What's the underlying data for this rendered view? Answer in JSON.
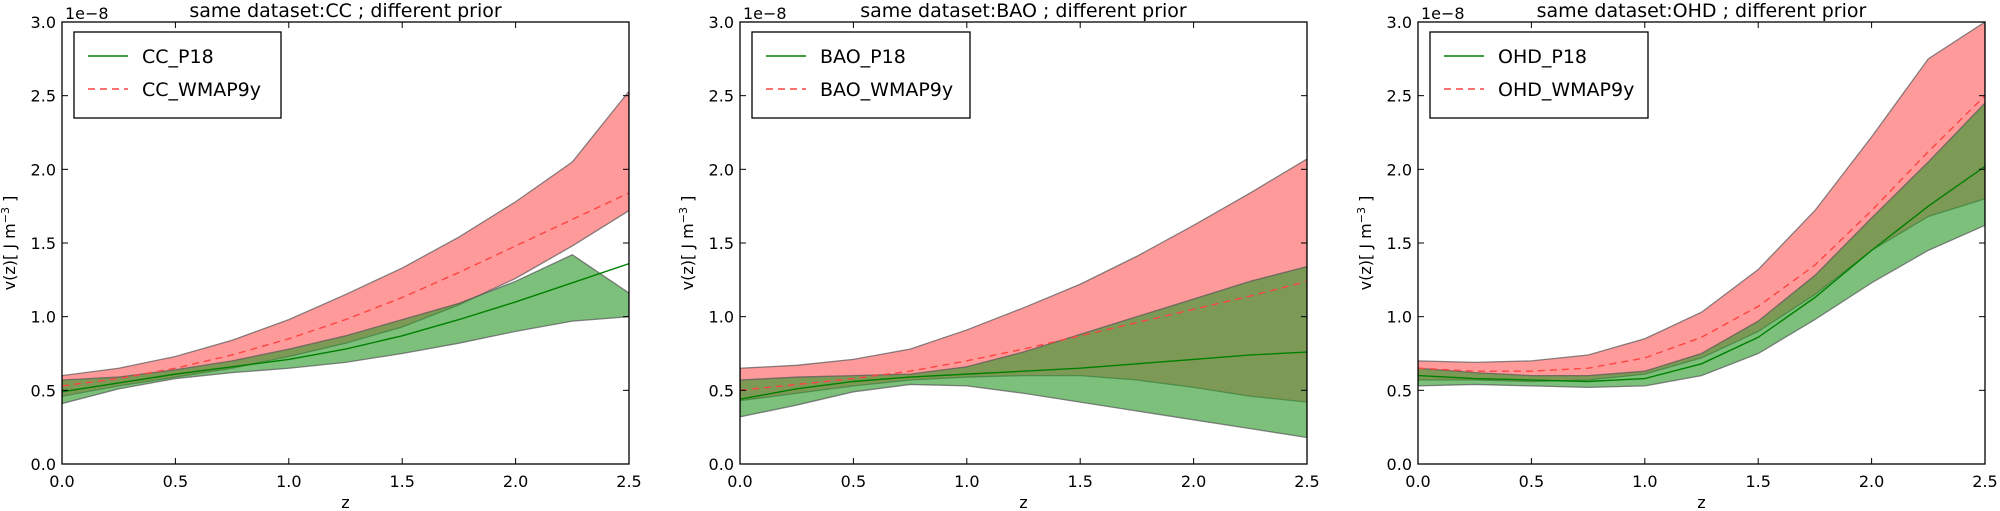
{
  "chart_data": [
    {
      "type": "line",
      "title": "same dataset:CC ; different prior",
      "xlabel": "z",
      "ylabel": "v(z)[ J m",
      "ylabel_sup": "−3",
      "ylabel_end": " ]",
      "y_offset_label": "1e−8",
      "xlim": [
        0.0,
        2.5
      ],
      "ylim": [
        0.0,
        3.0
      ],
      "xticks": [
        0.0,
        0.5,
        1.0,
        1.5,
        2.0,
        2.5
      ],
      "yticks": [
        0.0,
        0.5,
        1.0,
        1.5,
        2.0,
        2.5,
        3.0
      ],
      "legend_location": "upper-left",
      "x": [
        0.0,
        0.25,
        0.5,
        0.75,
        1.0,
        1.25,
        1.5,
        1.75,
        2.0,
        2.25,
        2.5
      ],
      "series": [
        {
          "name": "CC_P18",
          "color": "#008000",
          "fill_color": "#2b9a2b",
          "style": "solid",
          "mean": [
            0.49,
            0.55,
            0.61,
            0.66,
            0.71,
            0.78,
            0.87,
            0.98,
            1.1,
            1.23,
            1.36
          ],
          "lower": [
            0.41,
            0.51,
            0.58,
            0.62,
            0.65,
            0.69,
            0.75,
            0.82,
            0.9,
            0.97,
            1.0
          ],
          "upper": [
            0.57,
            0.59,
            0.64,
            0.7,
            0.78,
            0.87,
            0.98,
            1.09,
            1.24,
            1.42,
            1.16
          ]
        },
        {
          "name": "CC_WMAP9y",
          "color": "#ff4444",
          "fill_color": "#ff5c5c",
          "style": "dashed",
          "mean": [
            0.53,
            0.58,
            0.65,
            0.74,
            0.85,
            0.98,
            1.13,
            1.3,
            1.48,
            1.66,
            1.84
          ],
          "lower": [
            0.46,
            0.53,
            0.59,
            0.65,
            0.73,
            0.82,
            0.93,
            1.08,
            1.26,
            1.48,
            1.72
          ],
          "upper": [
            0.6,
            0.65,
            0.73,
            0.84,
            0.98,
            1.15,
            1.33,
            1.54,
            1.78,
            2.05,
            2.53
          ]
        }
      ]
    },
    {
      "type": "line",
      "title": "same dataset:BAO ; different prior",
      "xlabel": "z",
      "ylabel": "v(z)[ J m",
      "ylabel_sup": "−3",
      "ylabel_end": " ]",
      "y_offset_label": "1e−8",
      "xlim": [
        0.0,
        2.5
      ],
      "ylim": [
        0.0,
        3.0
      ],
      "xticks": [
        0.0,
        0.5,
        1.0,
        1.5,
        2.0,
        2.5
      ],
      "yticks": [
        0.0,
        0.5,
        1.0,
        1.5,
        2.0,
        2.5,
        3.0
      ],
      "legend_location": "upper-left",
      "x": [
        0.0,
        0.25,
        0.5,
        0.75,
        1.0,
        1.25,
        1.5,
        1.75,
        2.0,
        2.25,
        2.5
      ],
      "series": [
        {
          "name": "BAO_P18",
          "color": "#008000",
          "fill_color": "#2b9a2b",
          "style": "solid",
          "mean": [
            0.44,
            0.51,
            0.56,
            0.59,
            0.61,
            0.63,
            0.65,
            0.68,
            0.71,
            0.74,
            0.76
          ],
          "lower": [
            0.32,
            0.4,
            0.49,
            0.54,
            0.53,
            0.48,
            0.42,
            0.36,
            0.3,
            0.24,
            0.18
          ],
          "upper": [
            0.57,
            0.59,
            0.6,
            0.61,
            0.66,
            0.76,
            0.88,
            1.0,
            1.12,
            1.24,
            1.34
          ]
        },
        {
          "name": "BAO_WMAP9y",
          "color": "#ff4444",
          "fill_color": "#ff5c5c",
          "style": "dashed",
          "mean": [
            0.5,
            0.54,
            0.58,
            0.63,
            0.7,
            0.78,
            0.87,
            0.96,
            1.05,
            1.14,
            1.24
          ],
          "lower": [
            0.43,
            0.48,
            0.53,
            0.57,
            0.59,
            0.6,
            0.6,
            0.57,
            0.52,
            0.46,
            0.42
          ],
          "upper": [
            0.65,
            0.67,
            0.71,
            0.78,
            0.91,
            1.06,
            1.22,
            1.41,
            1.62,
            1.84,
            2.07
          ]
        }
      ]
    },
    {
      "type": "line",
      "title": "same dataset:OHD ; different prior",
      "xlabel": "z",
      "ylabel": "v(z)[ J m",
      "ylabel_sup": "−3",
      "ylabel_end": " ]",
      "y_offset_label": "1e−8",
      "xlim": [
        0.0,
        2.5
      ],
      "ylim": [
        0.0,
        3.0
      ],
      "xticks": [
        0.0,
        0.5,
        1.0,
        1.5,
        2.0,
        2.5
      ],
      "yticks": [
        0.0,
        0.5,
        1.0,
        1.5,
        2.0,
        2.5,
        3.0
      ],
      "legend_location": "upper-left",
      "x": [
        0.0,
        0.25,
        0.5,
        0.75,
        1.0,
        1.25,
        1.5,
        1.75,
        2.0,
        2.25,
        2.5
      ],
      "series": [
        {
          "name": "OHD_P18",
          "color": "#008000",
          "fill_color": "#2b9a2b",
          "style": "solid",
          "mean": [
            0.6,
            0.58,
            0.57,
            0.56,
            0.58,
            0.68,
            0.86,
            1.13,
            1.45,
            1.75,
            2.02
          ],
          "lower": [
            0.53,
            0.54,
            0.53,
            0.52,
            0.53,
            0.6,
            0.75,
            0.98,
            1.23,
            1.45,
            1.62
          ],
          "upper": [
            0.65,
            0.62,
            0.6,
            0.6,
            0.63,
            0.75,
            0.97,
            1.28,
            1.67,
            2.05,
            2.45
          ]
        },
        {
          "name": "OHD_WMAP9y",
          "color": "#ff4444",
          "fill_color": "#ff5c5c",
          "style": "dashed",
          "mean": [
            0.65,
            0.63,
            0.63,
            0.65,
            0.72,
            0.86,
            1.07,
            1.35,
            1.72,
            2.12,
            2.5
          ],
          "lower": [
            0.57,
            0.57,
            0.56,
            0.57,
            0.61,
            0.72,
            0.9,
            1.15,
            1.45,
            1.68,
            1.8
          ],
          "upper": [
            0.7,
            0.69,
            0.7,
            0.74,
            0.85,
            1.03,
            1.32,
            1.72,
            2.22,
            2.75,
            3.0
          ]
        }
      ]
    }
  ]
}
